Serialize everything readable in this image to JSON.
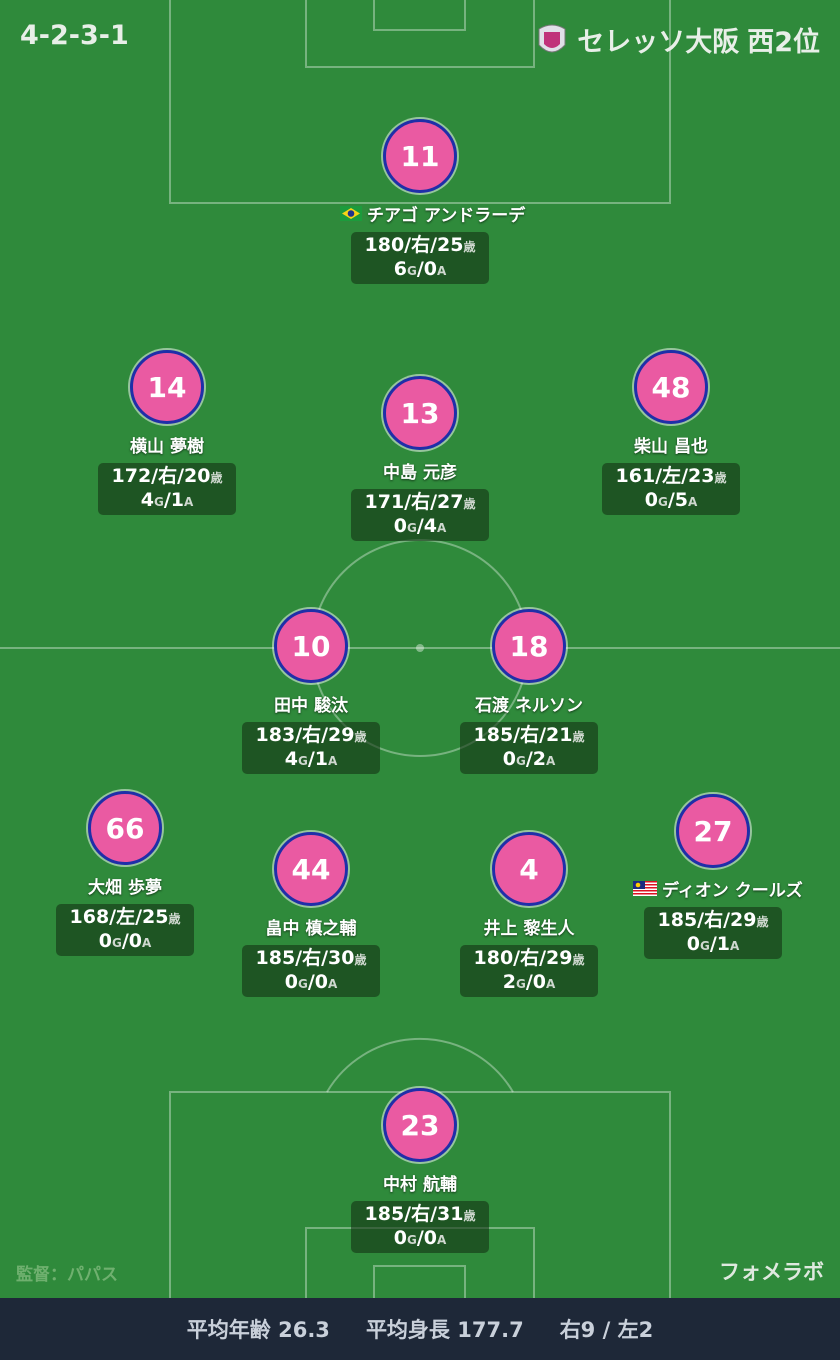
{
  "header": {
    "formation": "4-2-3-1",
    "team": "セレッソ大阪",
    "rank": "西2位"
  },
  "players": [
    {
      "number": "11",
      "name": "チアゴ アンドラーデ",
      "profile": [
        "180/右/25",
        "歳"
      ],
      "record": [
        "6",
        "G",
        "/0",
        "A"
      ]
    },
    {
      "number": "14",
      "name": "横山 夢樹",
      "profile": [
        "172/右/20",
        "歳"
      ],
      "record": [
        "4",
        "G",
        "/1",
        "A"
      ]
    },
    {
      "number": "13",
      "name": "中島 元彦",
      "profile": [
        "171/右/27",
        "歳"
      ],
      "record": [
        "0",
        "G",
        "/4",
        "A"
      ]
    },
    {
      "number": "48",
      "name": "柴山 昌也",
      "profile": [
        "161/左/23",
        "歳"
      ],
      "record": [
        "0",
        "G",
        "/5",
        "A"
      ]
    },
    {
      "number": "10",
      "name": "田中 駿汰",
      "profile": [
        "183/右/29",
        "歳"
      ],
      "record": [
        "4",
        "G",
        "/1",
        "A"
      ]
    },
    {
      "number": "18",
      "name": "石渡 ネルソン",
      "profile": [
        "185/右/21",
        "歳"
      ],
      "record": [
        "0",
        "G",
        "/2",
        "A"
      ]
    },
    {
      "number": "66",
      "name": "大畑 歩夢",
      "profile": [
        "168/左/25",
        "歳"
      ],
      "record": [
        "0",
        "G",
        "/0",
        "A"
      ]
    },
    {
      "number": "44",
      "name": "畠中 槙之輔",
      "profile": [
        "185/右/30",
        "歳"
      ],
      "record": [
        "0",
        "G",
        "/0",
        "A"
      ]
    },
    {
      "number": "4",
      "name": "井上 黎生人",
      "profile": [
        "180/右/29",
        "歳"
      ],
      "record": [
        "2",
        "G",
        "/0",
        "A"
      ]
    },
    {
      "number": "27",
      "name": "ディオン クールズ",
      "profile": [
        "185/右/29",
        "歳"
      ],
      "record": [
        "0",
        "G",
        "/1",
        "A"
      ]
    },
    {
      "number": "23",
      "name": "中村 航輔",
      "profile": [
        "185/右/31",
        "歳"
      ],
      "record": [
        "0",
        "G",
        "/0",
        "A"
      ]
    }
  ],
  "manager": "監督：パパス",
  "brand": "フォメラボ",
  "footer": {
    "avg_age": [
      "平均年齢",
      "26.3"
    ],
    "avg_height": [
      "平均身長",
      "177.7"
    ],
    "feet": "右9 / 左2"
  }
}
